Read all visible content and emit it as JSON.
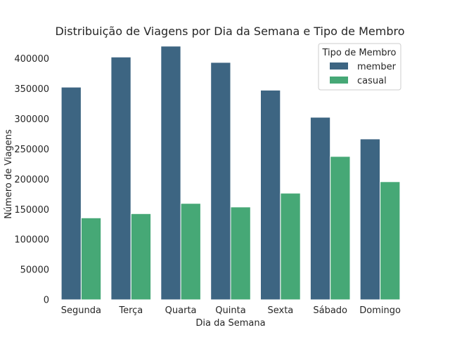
{
  "chart_data": {
    "type": "bar",
    "title": "Distribuição de Viagens por Dia da Semana e Tipo de Membro",
    "xlabel": "Dia da Semana",
    "ylabel": "Número de Viagens",
    "categories": [
      "Segunda",
      "Terça",
      "Quarta",
      "Quinta",
      "Sexta",
      "Sábado",
      "Domingo"
    ],
    "series": [
      {
        "name": "member",
        "color": "#3d6582",
        "values": [
          353000,
          403000,
          421000,
          394000,
          348000,
          303000,
          267000
        ]
      },
      {
        "name": "casual",
        "color": "#46a876",
        "values": [
          136000,
          143000,
          160000,
          154000,
          177000,
          238000,
          196000
        ]
      }
    ],
    "ylim": [
      0,
      430000
    ],
    "yticks": [
      0,
      50000,
      100000,
      150000,
      200000,
      250000,
      300000,
      350000,
      400000
    ],
    "legend": {
      "title": "Tipo de Membro",
      "placement": "upper-right"
    },
    "grid": false
  }
}
